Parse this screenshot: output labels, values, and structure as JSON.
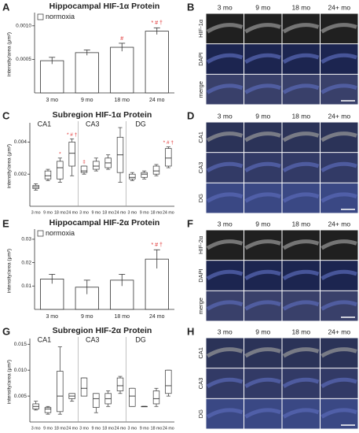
{
  "chart_data": [
    {
      "type": "bar",
      "panel": "A",
      "title": "Hippocampal HIF-1α Protein",
      "legend": "normoxia",
      "ylabel": "intensity/area (μm²)",
      "categories": [
        "3 mo",
        "9 mo",
        "18 mo",
        "24 mo"
      ],
      "values": [
        0.00048,
        0.0006,
        0.00068,
        0.00092
      ],
      "errors": [
        5e-05,
        4e-05,
        6e-05,
        5e-05
      ],
      "annotations": [
        null,
        null,
        "#",
        "* # †"
      ],
      "color": "#ffffff",
      "annotation_color": "#e03030",
      "ylim": [
        0,
        0.00115
      ],
      "yticks": [
        0.0005,
        {
          "value": 0.001,
          "label": "0.0010"
        }
      ]
    },
    {
      "type": "box",
      "panel": "C",
      "title": "Subregion HIF-1α Protein",
      "ylabel": "intensity/area (μm²)",
      "categories": [
        "3 mo",
        "9 mo",
        "18 mo",
        "24 mo"
      ],
      "annotation_color": "#e03030",
      "series": [
        {
          "name": "CA1",
          "min": [
            0.001,
            0.0016,
            0.0015,
            0.0019
          ],
          "q1": [
            0.0011,
            0.0017,
            0.0017,
            0.0025
          ],
          "median": [
            0.0012,
            0.0019,
            0.0024,
            0.0033
          ],
          "q3": [
            0.0013,
            0.0022,
            0.0028,
            0.004
          ],
          "max": [
            0.0014,
            0.0023,
            0.003,
            0.0042
          ],
          "annotations": [
            null,
            null,
            "*",
            "* # †"
          ]
        },
        {
          "name": "CA3",
          "min": [
            0.002,
            0.0022,
            0.0023,
            0.0015
          ],
          "q1": [
            0.0021,
            0.0023,
            0.0024,
            0.0021
          ],
          "median": [
            0.0022,
            0.0025,
            0.0027,
            0.0032
          ],
          "q3": [
            0.0025,
            0.0028,
            0.003,
            0.0043
          ],
          "max": [
            0.0025,
            0.003,
            0.0032,
            0.0049
          ],
          "annotations": [
            "‡",
            null,
            null,
            null
          ]
        },
        {
          "name": "DG",
          "min": [
            0.0016,
            0.0017,
            0.0019,
            0.0024
          ],
          "q1": [
            0.0017,
            0.0018,
            0.002,
            0.0025
          ],
          "median": [
            0.0018,
            0.002,
            0.0022,
            0.003
          ],
          "q3": [
            0.002,
            0.0021,
            0.0025,
            0.0036
          ],
          "max": [
            0.0021,
            0.0022,
            0.0026,
            0.0037
          ],
          "annotations": [
            null,
            null,
            null,
            "* # †"
          ]
        }
      ],
      "ylim": [
        0,
        0.005
      ],
      "yticks": [
        0.002,
        0.004
      ]
    },
    {
      "type": "bar",
      "panel": "E",
      "title": "Hippocampal HIF-2α Protein",
      "legend": "normoxia",
      "ylabel": "intensity/area (μm²)",
      "categories": [
        "3 mo",
        "9 mo",
        "18 mo",
        "24 mo"
      ],
      "values": [
        0.013,
        0.0095,
        0.0125,
        0.0215
      ],
      "errors": [
        0.002,
        0.003,
        0.0025,
        0.004
      ],
      "annotations": [
        null,
        null,
        null,
        "* # †"
      ],
      "color": "#ffffff",
      "annotation_color": "#e03030",
      "ylim": [
        0,
        0.033
      ],
      "yticks": [
        0.01,
        0.02,
        0.03
      ]
    },
    {
      "type": "box",
      "panel": "G",
      "title": "Subregion HIF-2α Protein",
      "ylabel": "intensity/area (μm²)",
      "categories": [
        "3 mo",
        "9 mo",
        "18 mo",
        "24 mo"
      ],
      "annotation_color": "#e03030",
      "series": [
        {
          "name": "CA1",
          "min": [
            0.0023,
            0.0015,
            0.0015,
            0.004
          ],
          "q1": [
            0.0025,
            0.0018,
            0.002,
            0.0045
          ],
          "median": [
            0.003,
            0.0025,
            0.005,
            0.005
          ],
          "q3": [
            0.0035,
            0.0028,
            0.0098,
            0.0055
          ],
          "max": [
            0.004,
            0.003,
            0.0145,
            0.0055
          ],
          "annotations": [
            null,
            null,
            null,
            null
          ]
        },
        {
          "name": "CA3",
          "min": [
            0.005,
            0.0018,
            0.003,
            0.0055
          ],
          "q1": [
            0.005,
            0.0028,
            0.0035,
            0.006
          ],
          "median": [
            0.0065,
            0.0045,
            0.0045,
            0.007
          ],
          "q3": [
            0.0085,
            0.0055,
            0.0055,
            0.0085
          ],
          "max": [
            0.0085,
            0.0055,
            0.006,
            0.0088
          ],
          "annotations": [
            null,
            null,
            null,
            null
          ]
        },
        {
          "name": "DG",
          "min": [
            0.003,
            0.003,
            0.003,
            0.005
          ],
          "q1": [
            0.003,
            0.003,
            0.0035,
            0.0055
          ],
          "median": [
            0.005,
            0.003,
            0.0045,
            0.007
          ],
          "q3": [
            0.0065,
            0.003,
            0.006,
            0.01
          ],
          "max": [
            0.0065,
            0.003,
            0.0065,
            0.01
          ],
          "annotations": [
            null,
            null,
            null,
            null
          ]
        }
      ],
      "ylim": [
        0,
        0.0155
      ],
      "yticks": [
        {
          "value": 0.005,
          "label": "0.005"
        },
        {
          "value": 0.01,
          "label": "0.010"
        },
        {
          "value": 0.015,
          "label": "0.015"
        }
      ]
    }
  ],
  "micrographs": [
    {
      "panel": "B",
      "columns": [
        "3 mo",
        "9 mo",
        "18 mo",
        "24+ mo"
      ],
      "rows": [
        "HIF-1α",
        "DAPI",
        "merge"
      ]
    },
    {
      "panel": "D",
      "columns": [
        "3 mo",
        "9 mo",
        "18 mo",
        "24+ mo"
      ],
      "rows": [
        "CA1",
        "CA3",
        "DG"
      ]
    },
    {
      "panel": "F",
      "columns": [
        "3 mo",
        "9 mo",
        "18 mo",
        "24+ mo"
      ],
      "rows": [
        "HIF-2α",
        "DAPI",
        "merge"
      ]
    },
    {
      "panel": "H",
      "columns": [
        "3 mo",
        "9 mo",
        "18 mo",
        "24+ mo"
      ],
      "rows": [
        "CA1",
        "CA3",
        "DG"
      ]
    }
  ]
}
